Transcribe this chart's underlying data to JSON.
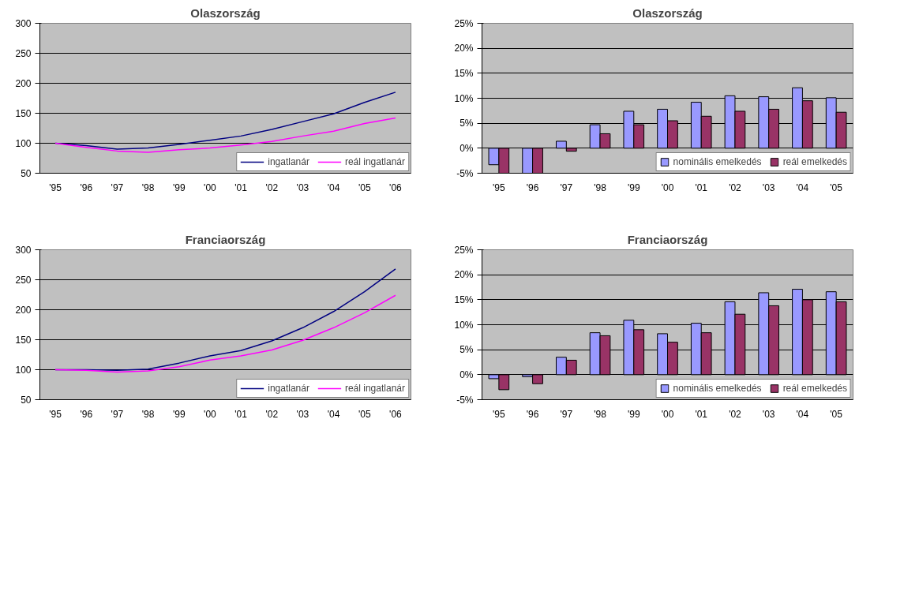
{
  "chart_data": [
    {
      "type": "line",
      "title": "Olaszország",
      "categories": [
        "'95",
        "'96",
        "'97",
        "'98",
        "'99",
        "'00",
        "'01",
        "'02",
        "'03",
        "'04",
        "'05",
        "'06"
      ],
      "ylim": [
        50,
        300
      ],
      "yticks": [
        50,
        100,
        150,
        200,
        250,
        300
      ],
      "grid": "y",
      "legend": "bottom",
      "series": [
        {
          "name": "ingatlanár",
          "color": "#000080",
          "values": [
            100,
            96,
            90,
            92,
            98,
            105,
            112,
            123,
            136,
            149,
            168,
            185
          ]
        },
        {
          "name": "reál ingatlanár",
          "color": "#ff00ff",
          "values": [
            100,
            93,
            87,
            85,
            89,
            92,
            97,
            103,
            112,
            120,
            133,
            142
          ]
        }
      ]
    },
    {
      "type": "bar",
      "title": "Olaszország",
      "categories": [
        "'95",
        "'96",
        "'97",
        "'98",
        "'99",
        "'00",
        "'01",
        "'02",
        "'03",
        "'04",
        "'05"
      ],
      "ylim": [
        -5,
        25
      ],
      "yticks": [
        {
          "value": -5,
          "label": "-5%"
        },
        {
          "value": 0,
          "label": "0%"
        },
        {
          "value": 5,
          "label": "5%"
        },
        {
          "value": 10,
          "label": "10%"
        },
        {
          "value": 15,
          "label": "15%"
        },
        {
          "value": 20,
          "label": "20%"
        },
        {
          "value": 25,
          "label": "25%"
        }
      ],
      "grid": "y",
      "legend": "bottom",
      "series": [
        {
          "name": "nominális emelkedés",
          "color": "#9999ff",
          "values": [
            -3.3,
            -5,
            1.4,
            4.7,
            7.4,
            7.8,
            9.2,
            10.5,
            10.3,
            12.1,
            10.1
          ]
        },
        {
          "name": "reál emelkedés",
          "color": "#993366",
          "values": [
            -5,
            -5,
            -0.6,
            2.9,
            4.7,
            5.5,
            6.4,
            7.4,
            7.8,
            9.5,
            7.2
          ]
        }
      ]
    },
    {
      "type": "line",
      "title": "Franciaország",
      "categories": [
        "'95",
        "'96",
        "'97",
        "'98",
        "'99",
        "'00",
        "'01",
        "'02",
        "'03",
        "'04",
        "'05",
        "'06"
      ],
      "ylim": [
        50,
        300
      ],
      "yticks": [
        50,
        100,
        150,
        200,
        250,
        300
      ],
      "grid": "y",
      "legend": "bottom",
      "series": [
        {
          "name": "ingatlanár",
          "color": "#000080",
          "values": [
            100,
            100,
            99,
            101,
            111,
            123,
            132,
            148,
            170,
            197,
            230,
            268
          ]
        },
        {
          "name": "reál ingatlanár",
          "color": "#ff00ff",
          "values": [
            100,
            99,
            96,
            98,
            105,
            116,
            123,
            133,
            149,
            170,
            195,
            224
          ]
        }
      ]
    },
    {
      "type": "bar",
      "title": "Franciaország",
      "categories": [
        "'95",
        "'96",
        "'97",
        "'98",
        "'99",
        "'00",
        "'01",
        "'02",
        "'03",
        "'04",
        "'05"
      ],
      "ylim": [
        -5,
        25
      ],
      "yticks": [
        {
          "value": -5,
          "label": "-5%"
        },
        {
          "value": 0,
          "label": "0%"
        },
        {
          "value": 5,
          "label": "5%"
        },
        {
          "value": 10,
          "label": "10%"
        },
        {
          "value": 15,
          "label": "15%"
        },
        {
          "value": 20,
          "label": "20%"
        },
        {
          "value": 25,
          "label": "25%"
        }
      ],
      "grid": "y",
      "legend": "bottom",
      "series": [
        {
          "name": "nominális emelkedés",
          "color": "#9999ff",
          "values": [
            -0.8,
            -0.4,
            3.5,
            8.4,
            10.9,
            8.2,
            10.3,
            14.6,
            16.4,
            17.1,
            16.6
          ]
        },
        {
          "name": "reál emelkedés",
          "color": "#993366",
          "values": [
            -3.0,
            -1.8,
            2.9,
            7.8,
            9.0,
            6.5,
            8.4,
            12.1,
            13.8,
            15.0,
            14.6
          ]
        }
      ]
    }
  ]
}
